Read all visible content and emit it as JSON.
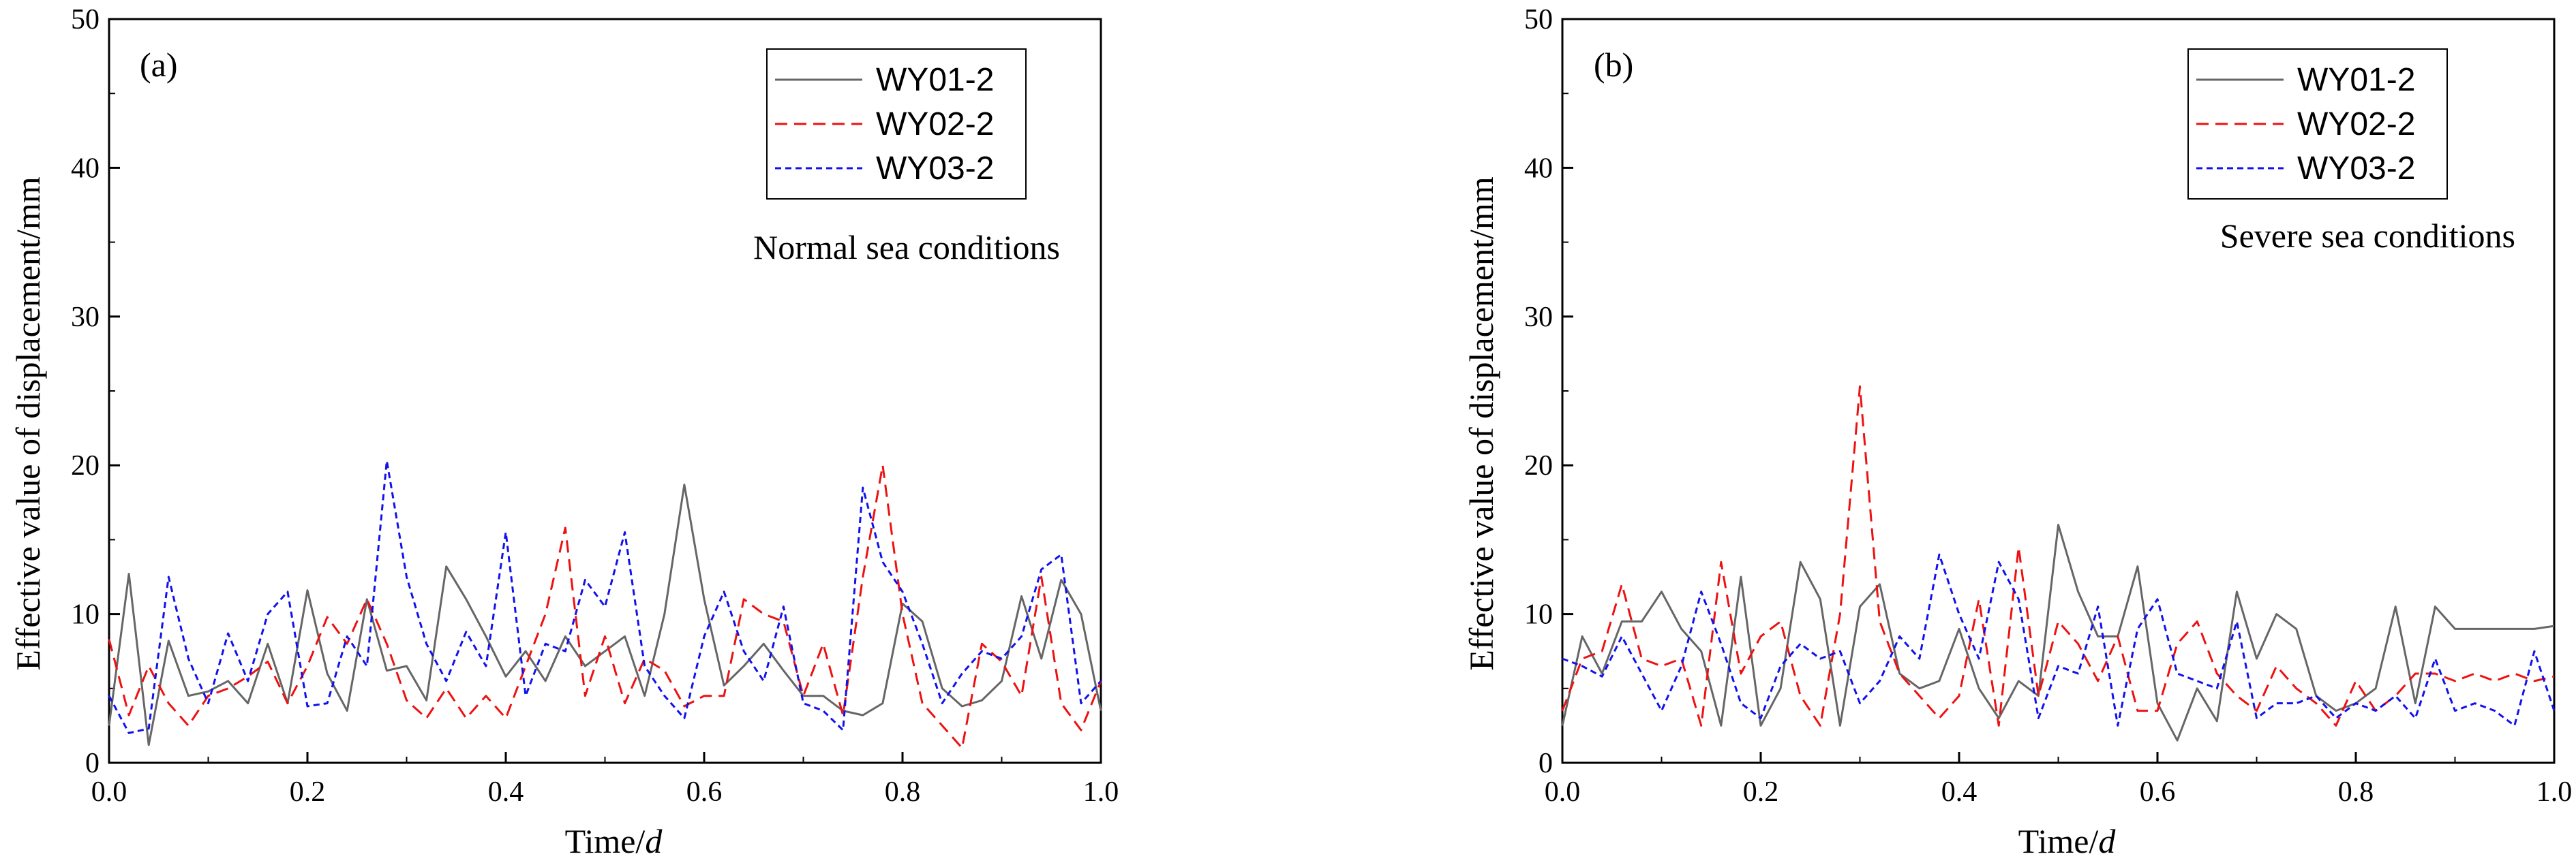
{
  "chart_data": [
    {
      "type": "line",
      "panel_label": "(a)",
      "annotation": "Normal sea conditions",
      "xlabel_main": "Time/",
      "xlabel_italic": "d",
      "ylabel": "Effective value of displacement/mm",
      "xlim": [
        0,
        1
      ],
      "ylim": [
        0,
        50
      ],
      "xticks": [
        "0.0",
        "0.2",
        "0.4",
        "0.6",
        "0.8",
        "1.0"
      ],
      "yticks": [
        "0",
        "10",
        "20",
        "30",
        "40",
        "50"
      ],
      "x": [
        0,
        0.02,
        0.04,
        0.06,
        0.08,
        0.1,
        0.12,
        0.14,
        0.16,
        0.18,
        0.2,
        0.22,
        0.24,
        0.26,
        0.28,
        0.3,
        0.32,
        0.34,
        0.36,
        0.38,
        0.4,
        0.42,
        0.44,
        0.46,
        0.48,
        0.5,
        0.52,
        0.54,
        0.56,
        0.58,
        0.6,
        0.62,
        0.64,
        0.66,
        0.68,
        0.7,
        0.72,
        0.74,
        0.76,
        0.78,
        0.8,
        0.82,
        0.84,
        0.86,
        0.88,
        0.9,
        0.92,
        0.94,
        0.96,
        0.98,
        1.0
      ],
      "series": [
        {
          "name": "WY01-2",
          "color": "#666666",
          "dash": "solid",
          "values": [
            2.5,
            12.7,
            1.2,
            8.2,
            4.5,
            4.8,
            5.5,
            4.0,
            8.0,
            4.0,
            11.6,
            6.0,
            3.5,
            11.0,
            6.2,
            6.5,
            4.2,
            13.2,
            11.0,
            8.5,
            5.8,
            7.5,
            5.5,
            8.5,
            6.5,
            7.5,
            8.5,
            4.5,
            10.0,
            18.7,
            11.0,
            5.2,
            6.5,
            8.0,
            6.2,
            4.5,
            4.5,
            3.5,
            3.2,
            4.0,
            10.7,
            9.5,
            5.0,
            3.8,
            4.2,
            5.5,
            11.2,
            7.0,
            12.3,
            10.0,
            3.5
          ]
        },
        {
          "name": "WY02-2",
          "color": "#ee1111",
          "dash": "long",
          "values": [
            8.3,
            3.2,
            6.5,
            4.0,
            2.5,
            4.5,
            5.0,
            5.8,
            6.8,
            4.0,
            6.5,
            9.8,
            8.0,
            11.0,
            8.0,
            4.2,
            3.0,
            5.0,
            3.0,
            4.5,
            3.0,
            6.5,
            10.0,
            15.8,
            4.5,
            8.5,
            4.0,
            7.0,
            6.2,
            3.8,
            4.5,
            4.5,
            11.0,
            10.0,
            9.5,
            4.5,
            8.0,
            3.2,
            12.5,
            20.0,
            10.0,
            4.0,
            2.5,
            1.0,
            8.0,
            6.8,
            4.5,
            12.5,
            4.0,
            2.2,
            5.5
          ]
        },
        {
          "name": "WY03-2",
          "color": "#1111ee",
          "dash": "short",
          "values": [
            4.5,
            2.0,
            2.3,
            12.5,
            7.0,
            4.0,
            8.7,
            5.5,
            10.0,
            11.5,
            3.8,
            4.0,
            8.5,
            6.5,
            20.3,
            12.5,
            8.0,
            5.5,
            8.8,
            6.5,
            15.5,
            4.5,
            8.0,
            7.5,
            12.3,
            10.5,
            15.5,
            6.5,
            4.5,
            3.0,
            8.5,
            11.5,
            7.5,
            5.5,
            10.5,
            4.0,
            3.5,
            2.2,
            18.5,
            13.5,
            11.5,
            8.0,
            4.0,
            6.0,
            7.5,
            7.0,
            8.5,
            13.0,
            14.0,
            4.0,
            5.5
          ]
        }
      ]
    },
    {
      "type": "line",
      "panel_label": "(b)",
      "annotation": "Severe sea conditions",
      "xlabel_main": "Time/",
      "xlabel_italic": "d",
      "ylabel": "Effective value of displacement/mm",
      "xlim": [
        0,
        1
      ],
      "ylim": [
        0,
        50
      ],
      "xticks": [
        "0.0",
        "0.2",
        "0.4",
        "0.6",
        "0.8",
        "1.0"
      ],
      "yticks": [
        "0",
        "10",
        "20",
        "30",
        "40",
        "50"
      ],
      "x": [
        0,
        0.02,
        0.04,
        0.06,
        0.08,
        0.1,
        0.12,
        0.14,
        0.16,
        0.18,
        0.2,
        0.22,
        0.24,
        0.26,
        0.28,
        0.3,
        0.32,
        0.34,
        0.36,
        0.38,
        0.4,
        0.42,
        0.44,
        0.46,
        0.48,
        0.5,
        0.52,
        0.54,
        0.56,
        0.58,
        0.6,
        0.62,
        0.64,
        0.66,
        0.68,
        0.7,
        0.72,
        0.74,
        0.76,
        0.78,
        0.8,
        0.82,
        0.84,
        0.86,
        0.88,
        0.9,
        0.92,
        0.94,
        0.96,
        0.98,
        1.0
      ],
      "series": [
        {
          "name": "WY01-2",
          "color": "#666666",
          "dash": "solid",
          "values": [
            2.5,
            8.5,
            6.0,
            9.5,
            9.5,
            11.5,
            9.0,
            7.5,
            2.5,
            12.5,
            2.5,
            5.0,
            13.5,
            11.0,
            2.5,
            10.5,
            12.0,
            6.0,
            5.0,
            5.5,
            9.0,
            5.0,
            3.0,
            5.5,
            4.5,
            16.0,
            11.5,
            8.5,
            8.5,
            13.2,
            4.0,
            1.5,
            5.0,
            2.8,
            11.5,
            7.0,
            10.0,
            9.0,
            4.5,
            3.5,
            4.0,
            5.0,
            10.5,
            4.0,
            10.5,
            9.0,
            9.0,
            9.0,
            9.0,
            9.0,
            9.2
          ]
        },
        {
          "name": "WY02-2",
          "color": "#ee1111",
          "dash": "long",
          "values": [
            3.5,
            7.0,
            7.5,
            12.0,
            7.0,
            6.5,
            7.0,
            2.5,
            13.5,
            6.0,
            8.5,
            9.5,
            4.5,
            2.5,
            10.0,
            25.3,
            9.5,
            6.0,
            4.5,
            3.0,
            4.5,
            11.0,
            2.5,
            14.5,
            4.5,
            9.5,
            8.0,
            5.5,
            8.5,
            3.5,
            3.5,
            8.0,
            9.5,
            6.0,
            4.5,
            3.5,
            6.5,
            5.0,
            4.0,
            2.5,
            5.5,
            3.5,
            4.5,
            6.0,
            6.0,
            5.5,
            6.0,
            5.5,
            6.0,
            5.5,
            5.8
          ]
        },
        {
          "name": "WY03-2",
          "color": "#1111ee",
          "dash": "short",
          "values": [
            7.0,
            6.5,
            5.8,
            8.5,
            6.0,
            3.5,
            6.5,
            11.5,
            8.0,
            4.0,
            3.0,
            6.5,
            8.0,
            7.0,
            7.5,
            4.0,
            5.5,
            8.5,
            7.0,
            14.0,
            10.0,
            7.0,
            13.5,
            11.0,
            3.0,
            6.5,
            6.0,
            10.5,
            2.5,
            9.0,
            11.0,
            6.0,
            5.5,
            5.0,
            9.5,
            3.0,
            4.0,
            4.0,
            4.5,
            3.0,
            4.0,
            3.5,
            4.5,
            3.0,
            7.0,
            3.5,
            4.0,
            3.5,
            2.5,
            7.5,
            3.5
          ]
        }
      ]
    }
  ]
}
